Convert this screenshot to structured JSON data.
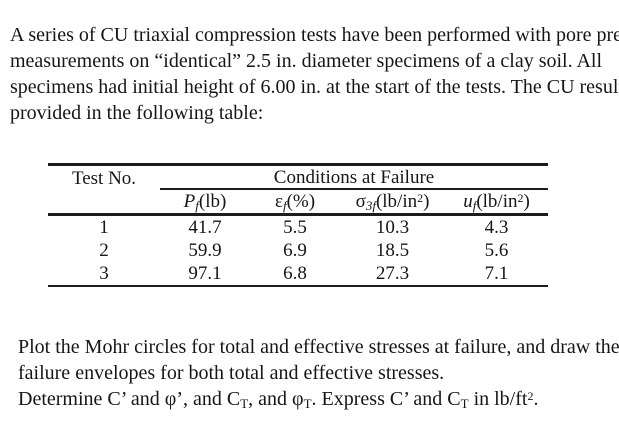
{
  "colors": {
    "background": "#ffffff",
    "text": "#161616",
    "rule": "#1c1c1c"
  },
  "intro": {
    "lines": [
      "A series of CU triaxial compression tests have been performed with pore pressure",
      "measurements on “identical” 2.5 in. diameter specimens of a clay soil. All",
      "specimens had initial height of 6.00 in. at the start of the tests. The CU results are",
      "provided in the following table:"
    ]
  },
  "table": {
    "corner_header": "Test No.",
    "span_header": "Conditions at Failure",
    "sub_headers": [
      {
        "segments": [
          {
            "text": "P",
            "style": "i"
          },
          {
            "text": "f",
            "style": "subi"
          },
          {
            "text": "(lb)",
            "style": null
          }
        ]
      },
      {
        "segments": [
          {
            "text": "ε",
            "style": null
          },
          {
            "text": "f",
            "style": "subi"
          },
          {
            "text": "(%)",
            "style": null
          }
        ]
      },
      {
        "segments": [
          {
            "text": "σ",
            "style": null
          },
          {
            "text": "3f",
            "style": "subi"
          },
          {
            "text": "(lb/in",
            "style": null
          },
          {
            "text": "2",
            "style": "sup"
          },
          {
            "text": ")",
            "style": null
          }
        ]
      },
      {
        "segments": [
          {
            "text": "u",
            "style": "i"
          },
          {
            "text": "f",
            "style": "subi"
          },
          {
            "text": "(lb/in",
            "style": null
          },
          {
            "text": "2",
            "style": "sup"
          },
          {
            "text": ")",
            "style": null
          }
        ]
      }
    ],
    "rows": [
      {
        "test_no": "1",
        "pf_lb": "41.7",
        "ef_pct": "5.5",
        "s3f_lb_in2": "10.3",
        "uf_lb_in2": "4.3"
      },
      {
        "test_no": "2",
        "pf_lb": "59.9",
        "ef_pct": "6.9",
        "s3f_lb_in2": "18.5",
        "uf_lb_in2": "5.6"
      },
      {
        "test_no": "3",
        "pf_lb": "97.1",
        "ef_pct": "6.8",
        "s3f_lb_in2": "27.3",
        "uf_lb_in2": "7.1"
      }
    ]
  },
  "task": {
    "lines": [
      {
        "segments": [
          {
            "text": "Plot the Mohr circles for total and effective stresses at failure, and draw the",
            "style": null
          }
        ]
      },
      {
        "segments": [
          {
            "text": "failure envelopes for both total and effective stresses.",
            "style": null
          }
        ]
      },
      {
        "segments": [
          {
            "text": "Determine C’ and φ’, and C",
            "style": null
          },
          {
            "text": "T",
            "style": "sub"
          },
          {
            "text": ", and φ",
            "style": null
          },
          {
            "text": "T",
            "style": "sub"
          },
          {
            "text": ". Express C’ and C",
            "style": null
          },
          {
            "text": "T",
            "style": "sub"
          },
          {
            "text": " in lb/ft",
            "style": null
          },
          {
            "text": "2",
            "style": "sup"
          },
          {
            "text": ".",
            "style": null
          }
        ]
      }
    ]
  }
}
